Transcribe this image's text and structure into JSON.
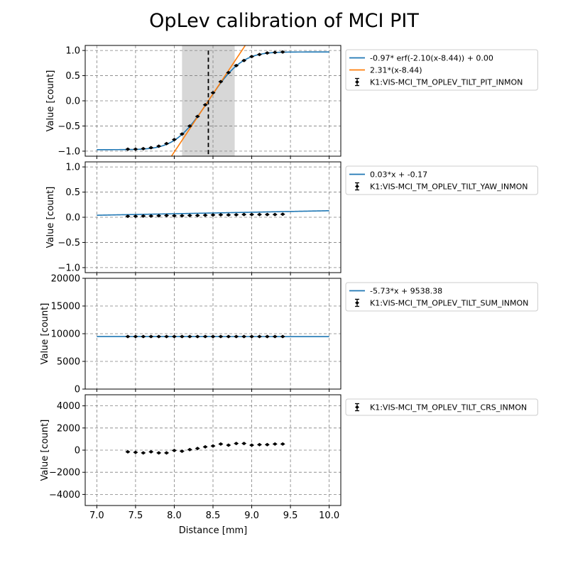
{
  "chart_data": {
    "type": "scatter",
    "title": "OpLev calibration of MCI PIT",
    "xlabel": "Distance [mm]",
    "xlim": [
      6.85,
      10.15
    ],
    "xticks": [
      7.0,
      7.5,
      8.0,
      8.5,
      9.0,
      9.5,
      10.0
    ],
    "xtick_labels": [
      "7.0",
      "7.5",
      "8.0",
      "8.5",
      "9.0",
      "9.5",
      "10.0"
    ],
    "grid": true,
    "legend_location": "outside-right",
    "colors": {
      "fit": "#1f77b4",
      "tangent": "#ff7f0e",
      "points": "#000000",
      "band": "#d3d3d3",
      "grid": "#808080"
    },
    "panels": [
      {
        "name": "PIT",
        "ylabel": "Value [count]",
        "ylim": [
          -1.1,
          1.1
        ],
        "yticks": [
          -1.0,
          -0.5,
          0.0,
          0.5,
          1.0
        ],
        "ytick_labels": [
          "−1.0",
          "−0.5",
          "0.0",
          "0.5",
          "1.0"
        ],
        "shaded_region": [
          8.1,
          8.78
        ],
        "vline": 8.44,
        "series": [
          {
            "name": "-0.97* erf(-2.10(x-8.44)) + 0.00",
            "kind": "line",
            "color": "#1f77b4",
            "function": "erf",
            "amplitude": -0.97,
            "rate": -2.1,
            "center": 8.44,
            "offset": 0.0,
            "x_range": [
              7.0,
              10.0
            ]
          },
          {
            "name": "2.31*(x-8.44)",
            "kind": "line",
            "color": "#ff7f0e",
            "function": "linear",
            "slope": 2.31,
            "center": 8.44,
            "x_range": [
              7.0,
              10.0
            ]
          },
          {
            "name": "K1:VIS-MCI_TM_OPLEV_TILT_PIT_INMON",
            "kind": "errorbar",
            "color": "#000000",
            "x": [
              7.4,
              7.5,
              7.6,
              7.7,
              7.8,
              7.9,
              8.0,
              8.1,
              8.2,
              8.3,
              8.4,
              8.5,
              8.6,
              8.7,
              8.8,
              8.9,
              9.0,
              9.1,
              9.2,
              9.3,
              9.4
            ],
            "y": [
              -0.96,
              -0.96,
              -0.95,
              -0.93,
              -0.9,
              -0.85,
              -0.77,
              -0.66,
              -0.5,
              -0.31,
              -0.08,
              0.16,
              0.38,
              0.56,
              0.7,
              0.8,
              0.88,
              0.92,
              0.95,
              0.96,
              0.97
            ]
          }
        ]
      },
      {
        "name": "YAW",
        "ylabel": "Value [count]",
        "ylim": [
          -1.1,
          1.1
        ],
        "yticks": [
          -1.0,
          -0.5,
          0.0,
          0.5,
          1.0
        ],
        "ytick_labels": [
          "−1.0",
          "−0.5",
          "0.0",
          "0.5",
          "1.0"
        ],
        "series": [
          {
            "name": "0.03*x + -0.17",
            "kind": "line",
            "color": "#1f77b4",
            "function": "linear",
            "slope": 0.03,
            "intercept": -0.17,
            "x_range": [
              7.0,
              10.0
            ]
          },
          {
            "name": "K1:VIS-MCI_TM_OPLEV_TILT_YAW_INMON",
            "kind": "errorbar",
            "color": "#000000",
            "x": [
              7.4,
              7.5,
              7.6,
              7.7,
              7.8,
              7.9,
              8.0,
              8.1,
              8.2,
              8.3,
              8.4,
              8.5,
              8.6,
              8.7,
              8.8,
              8.9,
              9.0,
              9.1,
              9.2,
              9.3,
              9.4
            ],
            "y": [
              0.02,
              0.02,
              0.025,
              0.025,
              0.03,
              0.035,
              0.03,
              0.03,
              0.035,
              0.035,
              0.04,
              0.045,
              0.05,
              0.045,
              0.05,
              0.055,
              0.055,
              0.055,
              0.055,
              0.055,
              0.06
            ]
          }
        ]
      },
      {
        "name": "SUM",
        "ylabel": "Value [count]",
        "ylim": [
          0,
          20000
        ],
        "yticks": [
          0,
          5000,
          10000,
          15000,
          20000
        ],
        "ytick_labels": [
          "0",
          "5000",
          "10000",
          "15000",
          "20000"
        ],
        "series": [
          {
            "name": "-5.73*x + 9538.38",
            "kind": "line",
            "color": "#1f77b4",
            "function": "linear",
            "slope": -5.73,
            "intercept": 9538.38,
            "x_range": [
              7.0,
              10.0
            ]
          },
          {
            "name": "K1:VIS-MCI_TM_OPLEV_TILT_SUM_INMON",
            "kind": "errorbar",
            "color": "#000000",
            "x": [
              7.4,
              7.5,
              7.6,
              7.7,
              7.8,
              7.9,
              8.0,
              8.1,
              8.2,
              8.3,
              8.4,
              8.5,
              8.6,
              8.7,
              8.8,
              8.9,
              9.0,
              9.1,
              9.2,
              9.3,
              9.4
            ],
            "y": [
              9495,
              9495,
              9494,
              9494,
              9493,
              9493,
              9492,
              9492,
              9491,
              9491,
              9490,
              9490,
              9489,
              9489,
              9488,
              9488,
              9487,
              9487,
              9486,
              9486,
              9485
            ]
          }
        ]
      },
      {
        "name": "CRS",
        "ylabel": "Value [count]",
        "ylim": [
          -5000,
          5000
        ],
        "yticks": [
          -4000,
          -2000,
          0,
          2000,
          4000
        ],
        "ytick_labels": [
          "−4000",
          "−2000",
          "0",
          "2000",
          "4000"
        ],
        "series": [
          {
            "name": "K1:VIS-MCI_TM_OPLEV_TILT_CRS_INMON",
            "kind": "errorbar",
            "color": "#000000",
            "x": [
              7.4,
              7.5,
              7.6,
              7.7,
              7.8,
              7.9,
              8.0,
              8.1,
              8.2,
              8.3,
              8.4,
              8.5,
              8.6,
              8.7,
              8.8,
              8.9,
              9.0,
              9.1,
              9.2,
              9.3,
              9.4
            ],
            "y": [
              -150,
              -200,
              -250,
              -150,
              -250,
              -250,
              -30,
              -100,
              50,
              150,
              300,
              380,
              550,
              450,
              600,
              600,
              450,
              500,
              500,
              550,
              550
            ]
          }
        ]
      }
    ]
  }
}
